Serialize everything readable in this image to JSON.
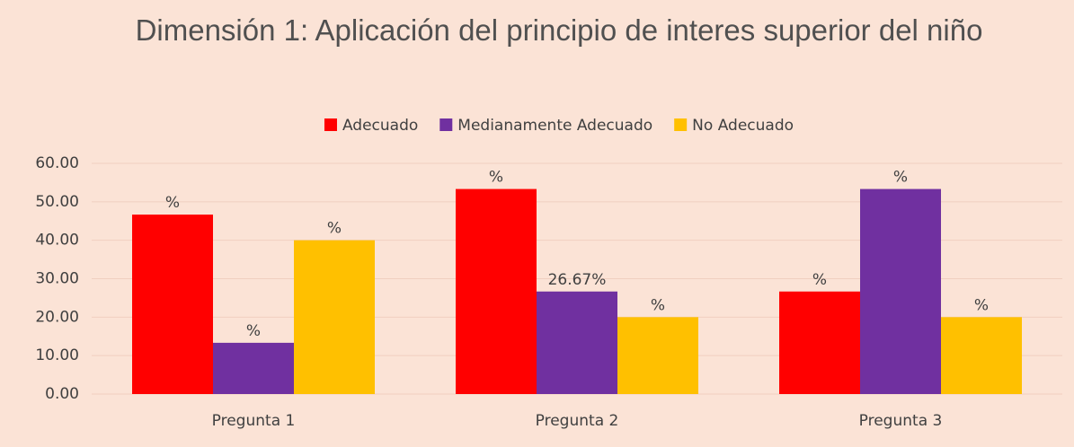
{
  "chart_data": {
    "type": "bar",
    "title": "Dimensión 1: Aplicación del principio de interes superior del niño",
    "categories": [
      "Pregunta 1",
      "Pregunta 2",
      "Pregunta 3"
    ],
    "series": [
      {
        "name": "Adecuado",
        "color": "#ff0000",
        "values": [
          46.67,
          53.33,
          26.67
        ],
        "value_labels": [
          "%",
          "%",
          "%"
        ]
      },
      {
        "name": "Medianamente Adecuado",
        "color": "#7030a0",
        "values": [
          13.33,
          26.67,
          53.33
        ],
        "value_labels": [
          "%",
          "26.67%",
          "%"
        ]
      },
      {
        "name": "No Adecuado",
        "color": "#ffc000",
        "values": [
          40,
          20,
          20
        ],
        "value_labels": [
          "%",
          "%",
          "%"
        ]
      }
    ],
    "ylim": [
      0,
      60
    ],
    "yticks": [
      {
        "value": 0,
        "label": "0.00"
      },
      {
        "value": 10,
        "label": "10.00"
      },
      {
        "value": 20,
        "label": "20.00"
      },
      {
        "value": 30,
        "label": "30.00"
      },
      {
        "value": 40,
        "label": "40.00"
      },
      {
        "value": 50,
        "label": "50.00"
      },
      {
        "value": 60,
        "label": "60.00"
      }
    ],
    "grid": true,
    "legend": "top"
  }
}
